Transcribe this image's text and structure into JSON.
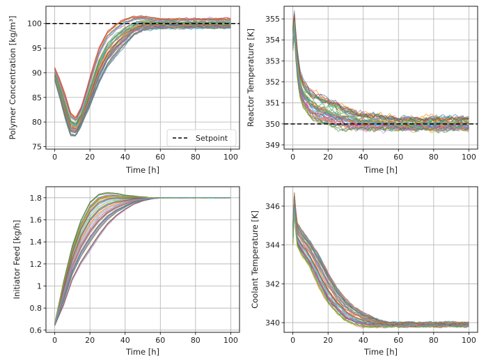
{
  "chart_data": [
    {
      "type": "line",
      "ylabel": "Polymer Concentration [kg/m³]",
      "xlabel": "Time [h]",
      "xlim": [
        -5,
        105
      ],
      "ylim": [
        74.5,
        103.5
      ],
      "xticks": [
        0,
        20,
        40,
        60,
        80,
        100
      ],
      "yticks": [
        75,
        80,
        85,
        90,
        95,
        100
      ],
      "grid": true,
      "legend": {
        "placement": "lower-right",
        "entries": [
          "Setpoint"
        ]
      },
      "setpoint": 100,
      "n_traces": 50,
      "envelope": {
        "x": [
          0,
          3,
          6,
          9,
          12,
          15,
          20,
          25,
          30,
          35,
          40,
          45,
          50,
          60,
          70,
          80,
          90,
          100
        ],
        "lower": [
          88.5,
          84.5,
          80.5,
          77.0,
          77.0,
          79.0,
          83.0,
          87.5,
          91.0,
          93.5,
          95.5,
          97.5,
          98.5,
          99.0,
          99.0,
          99.0,
          99.0,
          99.0
        ],
        "center": [
          90.0,
          87.0,
          83.0,
          80.0,
          79.0,
          81.0,
          86.5,
          92.5,
          96.5,
          98.5,
          99.8,
          100.3,
          100.2,
          100.0,
          100.0,
          100.0,
          100.0,
          100.0
        ],
        "upper": [
          91.0,
          88.5,
          85.5,
          82.0,
          81.0,
          83.0,
          89.0,
          95.0,
          98.5,
          100.0,
          101.0,
          101.5,
          101.5,
          101.0,
          101.0,
          101.0,
          101.0,
          101.0
        ]
      },
      "noise": 0.5
    },
    {
      "type": "line",
      "ylabel": "Reactor Temperature [K]",
      "xlabel": "Time [h]",
      "xlim": [
        -5,
        105
      ],
      "ylim": [
        348.8,
        355.6
      ],
      "xticks": [
        0,
        20,
        40,
        60,
        80,
        100
      ],
      "yticks": [
        349,
        350,
        351,
        352,
        353,
        354,
        355
      ],
      "grid": true,
      "setpoint": 350,
      "n_traces": 50,
      "envelope": {
        "x": [
          0,
          1,
          2,
          4,
          6,
          10,
          15,
          20,
          25,
          30,
          40,
          50,
          60,
          80,
          100
        ],
        "lower": [
          353.5,
          354.5,
          352.5,
          351.3,
          350.8,
          350.3,
          350.0,
          349.9,
          349.8,
          349.7,
          349.7,
          349.7,
          349.7,
          349.7,
          349.7
        ],
        "center": [
          354.0,
          355.0,
          353.2,
          352.0,
          351.4,
          350.9,
          350.7,
          350.6,
          350.5,
          350.4,
          350.1,
          350.0,
          350.0,
          350.0,
          350.0
        ],
        "upper": [
          354.5,
          355.4,
          353.8,
          352.5,
          352.0,
          351.6,
          351.4,
          351.2,
          351.0,
          350.8,
          350.5,
          350.4,
          350.3,
          350.3,
          350.3
        ]
      },
      "noise": 0.28
    },
    {
      "type": "line",
      "ylabel": "Initiator Feed [kg/h]",
      "xlabel": "Time [h]",
      "xlim": [
        -5,
        105
      ],
      "ylim": [
        0.58,
        1.9
      ],
      "xticks": [
        0,
        20,
        40,
        60,
        80,
        100
      ],
      "yticks": [
        0.6,
        0.8,
        1.0,
        1.2,
        1.4,
        1.6,
        1.8
      ],
      "grid": true,
      "n_traces": 50,
      "envelope": {
        "x": [
          0,
          5,
          10,
          15,
          20,
          25,
          30,
          35,
          40,
          45,
          50,
          55,
          60,
          70,
          100
        ],
        "lower": [
          0.64,
          0.82,
          1.05,
          1.2,
          1.32,
          1.44,
          1.55,
          1.63,
          1.69,
          1.74,
          1.77,
          1.79,
          1.8,
          1.8,
          1.8
        ],
        "center": [
          0.65,
          0.95,
          1.22,
          1.45,
          1.63,
          1.75,
          1.82,
          1.83,
          1.82,
          1.81,
          1.8,
          1.8,
          1.8,
          1.8,
          1.8
        ],
        "upper": [
          0.66,
          1.05,
          1.38,
          1.62,
          1.78,
          1.85,
          1.86,
          1.85,
          1.83,
          1.82,
          1.81,
          1.8,
          1.8,
          1.8,
          1.8
        ]
      },
      "noise": 0.004
    },
    {
      "type": "line",
      "ylabel": "Coolant Temperature [K]",
      "xlabel": "Time [h]",
      "xlim": [
        -5,
        105
      ],
      "ylim": [
        339.5,
        347.0
      ],
      "xticks": [
        0,
        20,
        40,
        60,
        80,
        100
      ],
      "yticks": [
        340,
        342,
        344,
        346
      ],
      "grid": true,
      "n_traces": 50,
      "envelope": {
        "x": [
          0,
          1,
          2,
          5,
          10,
          15,
          20,
          25,
          30,
          35,
          40,
          45,
          50,
          55,
          60,
          80,
          100
        ],
        "lower": [
          344.0,
          346.0,
          344.0,
          343.5,
          342.8,
          341.8,
          341.0,
          340.5,
          340.1,
          339.9,
          339.8,
          339.8,
          339.8,
          339.8,
          339.8,
          339.8,
          339.8
        ],
        "center": [
          344.5,
          346.5,
          344.6,
          344.2,
          343.6,
          342.7,
          341.8,
          341.1,
          340.6,
          340.2,
          340.0,
          339.9,
          339.9,
          339.9,
          339.9,
          339.9,
          339.9
        ],
        "upper": [
          345.0,
          347.0,
          345.2,
          344.8,
          344.2,
          343.5,
          342.6,
          341.8,
          341.2,
          340.8,
          340.5,
          340.3,
          340.1,
          340.0,
          340.0,
          340.0,
          340.0
        ]
      },
      "noise": 0.14
    }
  ],
  "colors": {
    "palette": [
      "#1f77b4",
      "#ff7f0e",
      "#2ca02c",
      "#d62728",
      "#9467bd",
      "#8c564b",
      "#e377c2",
      "#7f7f7f",
      "#bcbd22",
      "#17becf"
    ],
    "grid": "#b0b0b0",
    "setpoint": "#000000",
    "axes": "#000000"
  }
}
